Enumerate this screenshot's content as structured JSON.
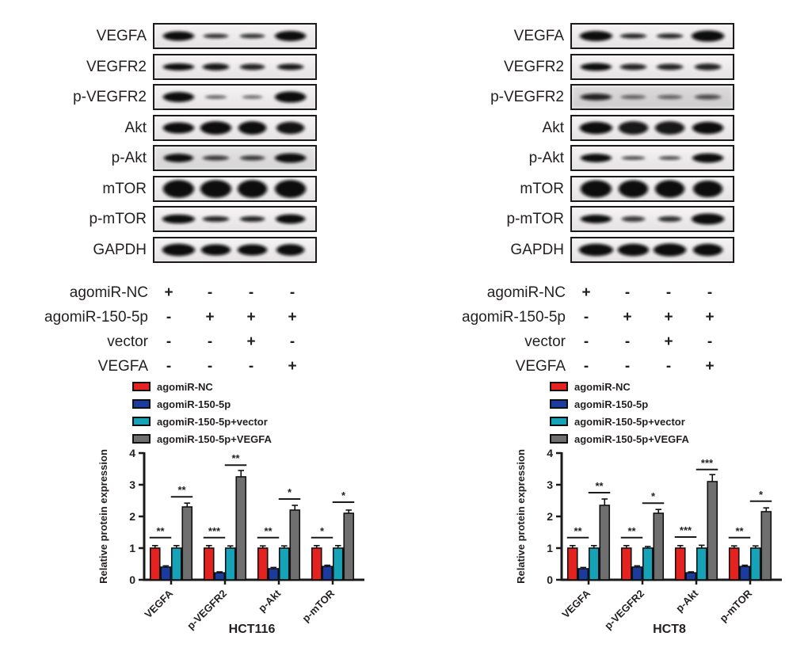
{
  "figure": {
    "panels": [
      {
        "name": "HCT116",
        "blot_rows": [
          {
            "label": "VEGFA",
            "lanes": [
              [
                1.0,
                0.42,
                1
              ],
              [
                0.8,
                0.2,
                0.85
              ],
              [
                0.8,
                0.2,
                0.85
              ],
              [
                1.0,
                0.45,
                1
              ]
            ]
          },
          {
            "label": "VEGFR2",
            "lanes": [
              [
                1.0,
                0.32,
                1
              ],
              [
                0.85,
                0.32,
                0.95
              ],
              [
                0.8,
                0.28,
                0.9
              ],
              [
                0.85,
                0.28,
                0.95
              ]
            ]
          },
          {
            "label": "p-VEGFR2",
            "lanes": [
              [
                1.0,
                0.45,
                1
              ],
              [
                0.7,
                0.15,
                0.65
              ],
              [
                0.65,
                0.15,
                0.6
              ],
              [
                1.0,
                0.5,
                1
              ]
            ]
          },
          {
            "label": "Akt",
            "lanes": [
              [
                1.0,
                0.5,
                1
              ],
              [
                1.0,
                0.6,
                1
              ],
              [
                0.9,
                0.6,
                1
              ],
              [
                0.9,
                0.55,
                0.97
              ]
            ]
          },
          {
            "label": "p-Akt",
            "lanes": [
              [
                0.95,
                0.38,
                1
              ],
              [
                0.85,
                0.22,
                0.8
              ],
              [
                0.8,
                0.22,
                0.8
              ],
              [
                1.0,
                0.42,
                1
              ]
            ],
            "noise": 0.1
          },
          {
            "label": "mTOR",
            "lanes": [
              [
                1.0,
                0.8,
                1
              ],
              [
                1.0,
                0.8,
                1
              ],
              [
                0.95,
                0.8,
                1
              ],
              [
                1.0,
                0.8,
                1
              ]
            ]
          },
          {
            "label": "p-mTOR",
            "lanes": [
              [
                1.05,
                0.4,
                1
              ],
              [
                0.85,
                0.25,
                0.9
              ],
              [
                0.8,
                0.25,
                0.9
              ],
              [
                0.95,
                0.42,
                1
              ]
            ]
          },
          {
            "label": "GAPDH",
            "lanes": [
              [
                1.05,
                0.55,
                1
              ],
              [
                0.95,
                0.5,
                1
              ],
              [
                0.95,
                0.5,
                1
              ],
              [
                0.9,
                0.52,
                1
              ]
            ]
          }
        ],
        "treatments": [
          {
            "label": "agomiR-NC",
            "marks": [
              "+",
              "-",
              "-",
              "-"
            ]
          },
          {
            "label": "agomiR-150-5p",
            "marks": [
              "-",
              "+",
              "+",
              "+"
            ]
          },
          {
            "label": "vector",
            "marks": [
              "-",
              "-",
              "+",
              "-"
            ]
          },
          {
            "label": "VEGFA",
            "marks": [
              "-",
              "-",
              "-",
              "+"
            ]
          }
        ],
        "chart_data": {
          "type": "bar",
          "xlabel": "HCT116",
          "ylabel": "Relative protein expression",
          "ylim": [
            0,
            4
          ],
          "yticks": [
            0,
            1,
            2,
            3,
            4
          ],
          "legend_position": "top-left",
          "categories": [
            "VEGFA",
            "p-VEGFR2",
            "p-Akt",
            "p-mTOR"
          ],
          "series": [
            {
              "name": "agomiR-NC",
              "color": "#e42320",
              "values": [
                1.0,
                1.0,
                1.0,
                1.0
              ],
              "errors": [
                0.08,
                0.08,
                0.07,
                0.08
              ]
            },
            {
              "name": "agomiR-150-5p",
              "color": "#1c3b9e",
              "values": [
                0.4,
                0.22,
                0.35,
                0.42
              ],
              "errors": [
                0.04,
                0.03,
                0.04,
                0.04
              ]
            },
            {
              "name": "agomiR-150-5p+vector",
              "color": "#16a3b7",
              "values": [
                1.0,
                1.0,
                1.0,
                1.0
              ],
              "errors": [
                0.08,
                0.07,
                0.07,
                0.08
              ]
            },
            {
              "name": "agomiR-150-5p+VEGFA",
              "color": "#6f6f6f",
              "values": [
                2.3,
                3.25,
                2.2,
                2.1
              ],
              "errors": [
                0.12,
                0.2,
                0.15,
                0.1
              ]
            }
          ],
          "significance": [
            {
              "category_index": 0,
              "bars": [
                0,
                1
              ],
              "stars": "**",
              "y": 1.33
            },
            {
              "category_index": 0,
              "bars": [
                2,
                3
              ],
              "stars": "**",
              "y": 2.62
            },
            {
              "category_index": 1,
              "bars": [
                0,
                1
              ],
              "stars": "***",
              "y": 1.33
            },
            {
              "category_index": 1,
              "bars": [
                2,
                3
              ],
              "stars": "**",
              "y": 3.62
            },
            {
              "category_index": 2,
              "bars": [
                0,
                1
              ],
              "stars": "**",
              "y": 1.33
            },
            {
              "category_index": 2,
              "bars": [
                2,
                3
              ],
              "stars": "*",
              "y": 2.55
            },
            {
              "category_index": 3,
              "bars": [
                0,
                1
              ],
              "stars": "*",
              "y": 1.33
            },
            {
              "category_index": 3,
              "bars": [
                2,
                3
              ],
              "stars": "*",
              "y": 2.45
            }
          ]
        }
      },
      {
        "name": "HCT8",
        "blot_rows": [
          {
            "label": "VEGFA",
            "lanes": [
              [
                1.05,
                0.45,
                1
              ],
              [
                0.85,
                0.22,
                0.9
              ],
              [
                0.85,
                0.22,
                0.9
              ],
              [
                1.05,
                0.5,
                1
              ]
            ]
          },
          {
            "label": "VEGFR2",
            "lanes": [
              [
                1.0,
                0.35,
                1
              ],
              [
                0.85,
                0.28,
                0.9
              ],
              [
                0.85,
                0.28,
                0.9
              ],
              [
                0.85,
                0.3,
                0.9
              ]
            ]
          },
          {
            "label": "p-VEGFR2",
            "lanes": [
              [
                1.0,
                0.3,
                0.9
              ],
              [
                0.8,
                0.18,
                0.6
              ],
              [
                0.8,
                0.18,
                0.6
              ],
              [
                0.85,
                0.22,
                0.7
              ]
            ],
            "noise": 0.16
          },
          {
            "label": "Akt",
            "lanes": [
              [
                1.05,
                0.55,
                1
              ],
              [
                0.95,
                0.6,
                0.95
              ],
              [
                0.95,
                0.6,
                0.95
              ],
              [
                1.0,
                0.55,
                1
              ]
            ]
          },
          {
            "label": "p-Akt",
            "lanes": [
              [
                1.0,
                0.38,
                1
              ],
              [
                0.75,
                0.16,
                0.75
              ],
              [
                0.7,
                0.16,
                0.75
              ],
              [
                1.0,
                0.42,
                1
              ]
            ]
          },
          {
            "label": "mTOR",
            "lanes": [
              [
                1.0,
                0.78,
                1
              ],
              [
                0.95,
                0.78,
                1
              ],
              [
                0.95,
                0.78,
                1
              ],
              [
                0.95,
                0.75,
                1
              ]
            ]
          },
          {
            "label": "p-mTOR",
            "lanes": [
              [
                1.0,
                0.38,
                1
              ],
              [
                0.75,
                0.25,
                0.8
              ],
              [
                0.75,
                0.25,
                0.85
              ],
              [
                1.05,
                0.5,
                1
              ]
            ]
          },
          {
            "label": "GAPDH",
            "lanes": [
              [
                1.1,
                0.55,
                1
              ],
              [
                1.0,
                0.55,
                1
              ],
              [
                1.05,
                0.58,
                1
              ],
              [
                0.95,
                0.55,
                1
              ]
            ]
          }
        ],
        "treatments": [
          {
            "label": "agomiR-NC",
            "marks": [
              "+",
              "-",
              "-",
              "-"
            ]
          },
          {
            "label": "agomiR-150-5p",
            "marks": [
              "-",
              "+",
              "+",
              "+"
            ]
          },
          {
            "label": "vector",
            "marks": [
              "-",
              "-",
              "+",
              "-"
            ]
          },
          {
            "label": "VEGFA",
            "marks": [
              "-",
              "-",
              "-",
              "+"
            ]
          }
        ],
        "chart_data": {
          "type": "bar",
          "xlabel": "HCT8",
          "ylabel": "Relative protein expression",
          "ylim": [
            0,
            4
          ],
          "yticks": [
            0,
            1,
            2,
            3,
            4
          ],
          "legend_position": "top-left",
          "categories": [
            "VEGFA",
            "p-VEGFR2",
            "p-Akt",
            "p-mTOR"
          ],
          "series": [
            {
              "name": "agomiR-NC",
              "color": "#e42320",
              "values": [
                1.0,
                1.0,
                1.0,
                1.0
              ],
              "errors": [
                0.08,
                0.08,
                0.08,
                0.07
              ]
            },
            {
              "name": "agomiR-150-5p",
              "color": "#1c3b9e",
              "values": [
                0.35,
                0.4,
                0.22,
                0.42
              ],
              "errors": [
                0.04,
                0.04,
                0.03,
                0.04
              ]
            },
            {
              "name": "agomiR-150-5p+vector",
              "color": "#16a3b7",
              "values": [
                1.0,
                1.0,
                1.0,
                1.0
              ],
              "errors": [
                0.08,
                0.05,
                0.09,
                0.07
              ]
            },
            {
              "name": "agomiR-150-5p+VEGFA",
              "color": "#6f6f6f",
              "values": [
                2.35,
                2.1,
                3.1,
                2.15
              ],
              "errors": [
                0.2,
                0.12,
                0.22,
                0.12
              ]
            }
          ],
          "significance": [
            {
              "category_index": 0,
              "bars": [
                0,
                1
              ],
              "stars": "**",
              "y": 1.33
            },
            {
              "category_index": 0,
              "bars": [
                2,
                3
              ],
              "stars": "**",
              "y": 2.75
            },
            {
              "category_index": 1,
              "bars": [
                0,
                1
              ],
              "stars": "**",
              "y": 1.33
            },
            {
              "category_index": 1,
              "bars": [
                2,
                3
              ],
              "stars": "*",
              "y": 2.42
            },
            {
              "category_index": 2,
              "bars": [
                0,
                1
              ],
              "stars": "***",
              "y": 1.35
            },
            {
              "category_index": 2,
              "bars": [
                2,
                3
              ],
              "stars": "***",
              "y": 3.48
            },
            {
              "category_index": 3,
              "bars": [
                0,
                1
              ],
              "stars": "**",
              "y": 1.33
            },
            {
              "category_index": 3,
              "bars": [
                2,
                3
              ],
              "stars": "*",
              "y": 2.48
            }
          ]
        }
      }
    ]
  }
}
